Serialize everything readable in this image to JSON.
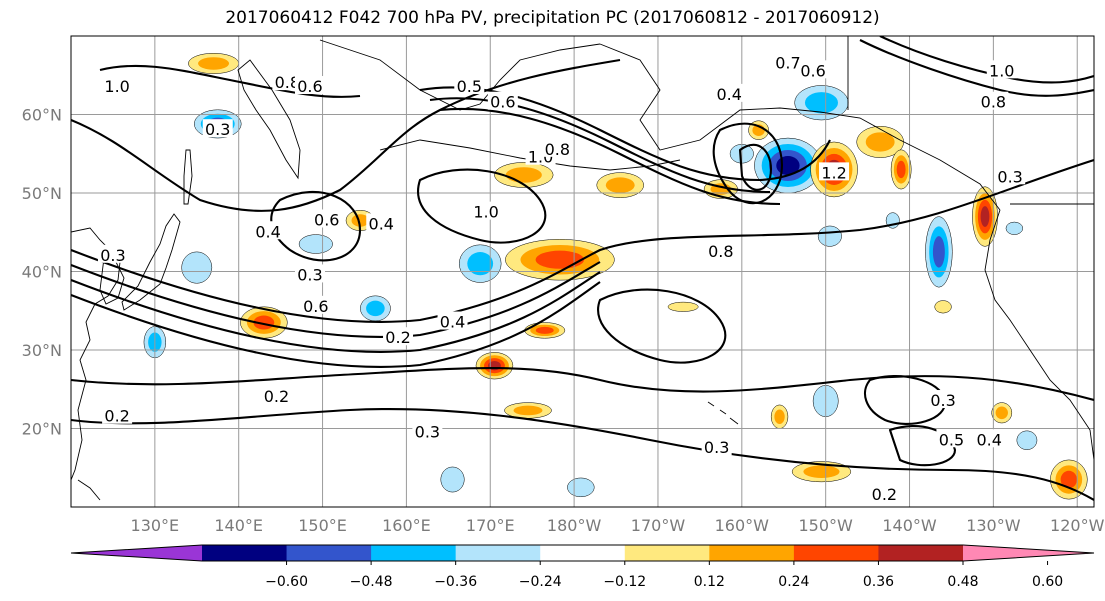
{
  "title": "2017060412 F042 700 hPa PV, precipitation PC (2017060812 - 2017060912)",
  "map": {
    "projection": "equirectangular",
    "lon_range": [
      120,
      242
    ],
    "lat_range": [
      10,
      70
    ],
    "lat_ticks": [
      {
        "lat": 20,
        "label": "20°N"
      },
      {
        "lat": 30,
        "label": "30°N"
      },
      {
        "lat": 40,
        "label": "40°N"
      },
      {
        "lat": 50,
        "label": "50°N"
      },
      {
        "lat": 60,
        "label": "60°N"
      }
    ],
    "lon_ticks": [
      {
        "lon": 130,
        "label": "130°E"
      },
      {
        "lon": 140,
        "label": "140°E"
      },
      {
        "lon": 150,
        "label": "150°E"
      },
      {
        "lon": 160,
        "label": "160°E"
      },
      {
        "lon": 170,
        "label": "170°E"
      },
      {
        "lon": 180,
        "label": "180°W"
      },
      {
        "lon": 190,
        "label": "170°W"
      },
      {
        "lon": 200,
        "label": "160°W"
      },
      {
        "lon": 210,
        "label": "150°W"
      },
      {
        "lon": 220,
        "label": "140°W"
      },
      {
        "lon": 230,
        "label": "130°W"
      },
      {
        "lon": 240,
        "label": "120°W"
      }
    ],
    "contour_labels": [
      {
        "text": "0.6",
        "lon": 149.2,
        "lat": 35.5
      },
      {
        "text": "0.5",
        "lon": 167.5,
        "lat": 63.5
      },
      {
        "text": "0.6",
        "lon": 171.5,
        "lat": 61.5
      },
      {
        "text": "0.8",
        "lon": 145.8,
        "lat": 64.0
      },
      {
        "text": "0.6",
        "lon": 148.5,
        "lat": 63.5
      },
      {
        "text": "1.0",
        "lon": 125.5,
        "lat": 63.5
      },
      {
        "text": "0.3",
        "lon": 137.5,
        "lat": 58.0
      },
      {
        "text": "1.0",
        "lon": 176.0,
        "lat": 54.5
      },
      {
        "text": "0.8",
        "lon": 178.0,
        "lat": 55.5
      },
      {
        "text": "1.0",
        "lon": 169.5,
        "lat": 47.5
      },
      {
        "text": "0.4",
        "lon": 157.0,
        "lat": 46.0
      },
      {
        "text": "0.6",
        "lon": 150.5,
        "lat": 46.5
      },
      {
        "text": "0.4",
        "lon": 143.5,
        "lat": 45.0
      },
      {
        "text": "0.3",
        "lon": 148.5,
        "lat": 39.5
      },
      {
        "text": "0.3",
        "lon": 125.0,
        "lat": 42.0
      },
      {
        "text": "0.4",
        "lon": 165.5,
        "lat": 33.5
      },
      {
        "text": "0.2",
        "lon": 159.0,
        "lat": 31.5
      },
      {
        "text": "0.2",
        "lon": 144.5,
        "lat": 24.0
      },
      {
        "text": "0.2",
        "lon": 125.5,
        "lat": 21.5
      },
      {
        "text": "0.3",
        "lon": 162.5,
        "lat": 19.5
      },
      {
        "text": "0.3",
        "lon": 197.0,
        "lat": 17.5
      },
      {
        "text": "0.2",
        "lon": 217.0,
        "lat": 11.5
      },
      {
        "text": "0.8",
        "lon": 197.5,
        "lat": 42.5
      },
      {
        "text": "0.4",
        "lon": 198.5,
        "lat": 62.5
      },
      {
        "text": "0.7",
        "lon": 205.5,
        "lat": 66.5
      },
      {
        "text": "0.6",
        "lon": 208.5,
        "lat": 65.5
      },
      {
        "text": "1.0",
        "lon": 231.0,
        "lat": 65.5
      },
      {
        "text": "0.8",
        "lon": 230.0,
        "lat": 61.5
      },
      {
        "text": "1.2",
        "lon": 211.0,
        "lat": 52.5
      },
      {
        "text": "0.3",
        "lon": 224.0,
        "lat": 23.5
      },
      {
        "text": "0.5",
        "lon": 225.0,
        "lat": 18.5
      },
      {
        "text": "0.4",
        "lon": 229.5,
        "lat": 18.5
      },
      {
        "text": "0.3",
        "lon": 232.0,
        "lat": 52.0
      }
    ]
  },
  "colorbar": {
    "colors": [
      "#9a35d6",
      "#000080",
      "#3355cc",
      "#00bfff",
      "#b3e4fb",
      "#ffffff",
      "#ffe97f",
      "#ffa500",
      "#ff4500",
      "#b22222",
      "#ff88b4"
    ],
    "tick_labels": [
      "−0.60",
      "−0.48",
      "−0.36",
      "−0.24",
      "−0.12",
      "0.12",
      "0.24",
      "0.36",
      "0.48",
      "0.60"
    ]
  },
  "precip_pc_blobs": [
    {
      "lon": 137.5,
      "lat": 58.8,
      "rx": 2.8,
      "ry": 1.8,
      "level": "neg3"
    },
    {
      "lon": 130.0,
      "lat": 31.0,
      "rx": 1.3,
      "ry": 2.0,
      "level": "neg2"
    },
    {
      "lon": 135.0,
      "lat": 40.5,
      "rx": 1.8,
      "ry": 2.0,
      "level": "neg1"
    },
    {
      "lon": 143.0,
      "lat": 33.5,
      "rx": 2.8,
      "ry": 2.0,
      "level": "pos3"
    },
    {
      "lon": 149.2,
      "lat": 43.5,
      "rx": 2.0,
      "ry": 1.2,
      "level": "neg1"
    },
    {
      "lon": 154.5,
      "lat": 46.5,
      "rx": 1.7,
      "ry": 1.3,
      "level": "pos2"
    },
    {
      "lon": 156.3,
      "lat": 35.3,
      "rx": 1.8,
      "ry": 1.6,
      "level": "neg2"
    },
    {
      "lon": 168.8,
      "lat": 41.0,
      "rx": 2.5,
      "ry": 2.4,
      "level": "neg2"
    },
    {
      "lon": 178.3,
      "lat": 41.5,
      "rx": 6.5,
      "ry": 2.6,
      "level": "pos3"
    },
    {
      "lon": 176.5,
      "lat": 32.5,
      "rx": 2.4,
      "ry": 1.0,
      "level": "pos3"
    },
    {
      "lon": 170.5,
      "lat": 28.0,
      "rx": 2.2,
      "ry": 1.7,
      "level": "pos4"
    },
    {
      "lon": 174.5,
      "lat": 22.3,
      "rx": 2.8,
      "ry": 1.0,
      "level": "pos2"
    },
    {
      "lon": 174.0,
      "lat": 52.3,
      "rx": 3.5,
      "ry": 1.6,
      "level": "pos2"
    },
    {
      "lon": 185.5,
      "lat": 51.0,
      "rx": 2.8,
      "ry": 1.6,
      "level": "pos2"
    },
    {
      "lon": 197.5,
      "lat": 50.5,
      "rx": 2.0,
      "ry": 1.2,
      "level": "pos2"
    },
    {
      "lon": 200.0,
      "lat": 55.0,
      "rx": 1.4,
      "ry": 1.2,
      "level": "neg1"
    },
    {
      "lon": 202.0,
      "lat": 58.0,
      "rx": 1.2,
      "ry": 1.2,
      "level": "pos2"
    },
    {
      "lon": 205.5,
      "lat": 53.5,
      "rx": 4.0,
      "ry": 3.5,
      "level": "neg4"
    },
    {
      "lon": 211.0,
      "lat": 53.0,
      "rx": 2.8,
      "ry": 3.5,
      "level": "pos4"
    },
    {
      "lon": 209.5,
      "lat": 61.5,
      "rx": 3.2,
      "ry": 2.2,
      "level": "neg2"
    },
    {
      "lon": 216.5,
      "lat": 56.5,
      "rx": 2.8,
      "ry": 2.0,
      "level": "pos2"
    },
    {
      "lon": 219.0,
      "lat": 53.0,
      "rx": 1.2,
      "ry": 2.5,
      "level": "pos3"
    },
    {
      "lon": 223.5,
      "lat": 42.5,
      "rx": 1.6,
      "ry": 4.5,
      "level": "neg3"
    },
    {
      "lon": 229.0,
      "lat": 47.0,
      "rx": 1.5,
      "ry": 3.8,
      "level": "pos4"
    },
    {
      "lon": 210.5,
      "lat": 44.5,
      "rx": 1.4,
      "ry": 1.3,
      "level": "neg1"
    },
    {
      "lon": 193.0,
      "lat": 35.5,
      "rx": 1.8,
      "ry": 0.6,
      "level": "pos1"
    },
    {
      "lon": 210.0,
      "lat": 23.5,
      "rx": 1.5,
      "ry": 2.0,
      "level": "neg1"
    },
    {
      "lon": 209.5,
      "lat": 14.5,
      "rx": 3.5,
      "ry": 1.3,
      "level": "pos2"
    },
    {
      "lon": 204.5,
      "lat": 21.5,
      "rx": 1.0,
      "ry": 1.5,
      "level": "pos2"
    },
    {
      "lon": 231.0,
      "lat": 22.0,
      "rx": 1.2,
      "ry": 1.3,
      "level": "pos2"
    },
    {
      "lon": 234.0,
      "lat": 18.5,
      "rx": 1.2,
      "ry": 1.2,
      "level": "neg1"
    },
    {
      "lon": 239.0,
      "lat": 13.5,
      "rx": 2.2,
      "ry": 2.5,
      "level": "pos3"
    },
    {
      "lon": 224.0,
      "lat": 35.5,
      "rx": 1.0,
      "ry": 0.8,
      "level": "pos1"
    },
    {
      "lon": 180.8,
      "lat": 12.5,
      "rx": 1.6,
      "ry": 1.2,
      "level": "neg1"
    },
    {
      "lon": 165.5,
      "lat": 13.5,
      "rx": 1.4,
      "ry": 1.6,
      "level": "neg1"
    },
    {
      "lon": 218.0,
      "lat": 46.5,
      "rx": 0.8,
      "ry": 1.0,
      "level": "neg1"
    },
    {
      "lon": 232.5,
      "lat": 45.5,
      "rx": 1.0,
      "ry": 0.8,
      "level": "neg1"
    },
    {
      "lon": 137.0,
      "lat": 66.5,
      "rx": 3.0,
      "ry": 1.3,
      "level": "pos2"
    }
  ]
}
